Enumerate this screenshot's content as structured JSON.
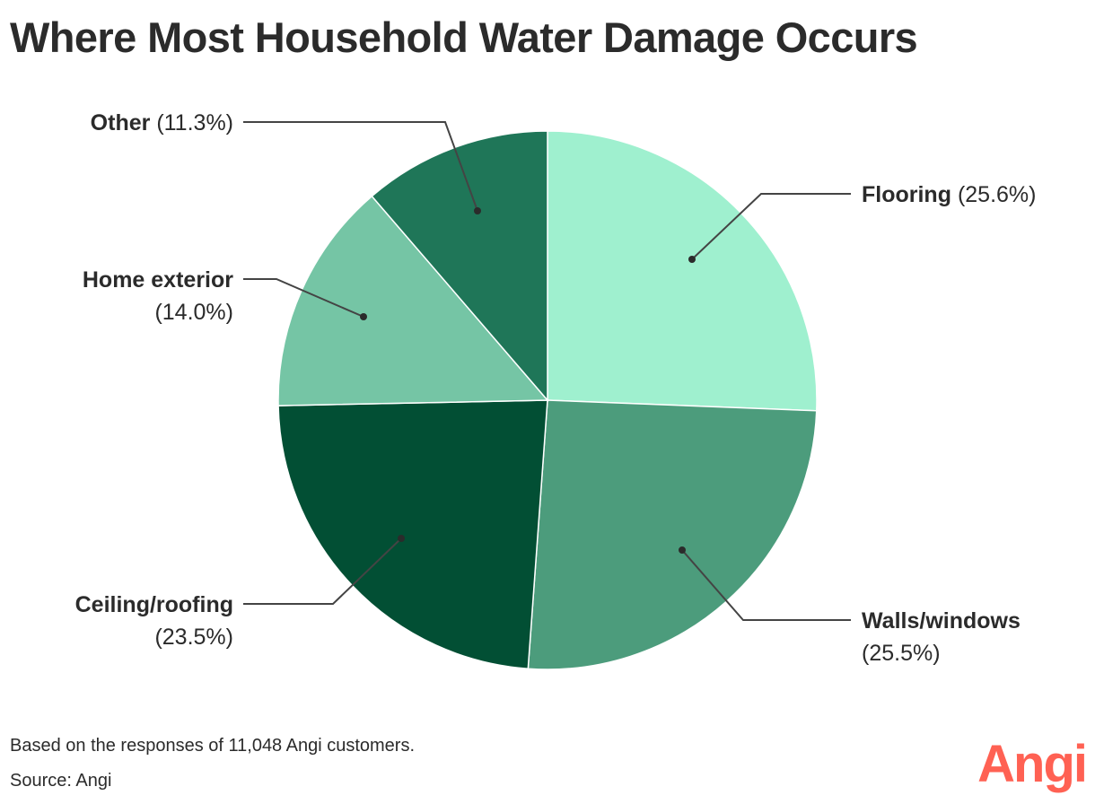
{
  "title": "Where Most Household Water Damage Occurs",
  "chart_data": {
    "type": "pie",
    "title": "Where Most Household Water Damage Occurs",
    "start_angle": "12 o'clock, clockwise",
    "slices": [
      {
        "label": "Flooring",
        "value": 25.6,
        "display": "(25.6%)",
        "color": "#9ff0cf"
      },
      {
        "label": "Walls/windows",
        "value": 25.5,
        "display": "(25.5%)",
        "color": "#4c9c7c"
      },
      {
        "label": "Ceiling/roofing",
        "value": 23.5,
        "display": "(23.5%)",
        "color": "#024f34"
      },
      {
        "label": "Home exterior",
        "value": 14.0,
        "display": "(14.0%)",
        "color": "#75c5a5"
      },
      {
        "label": "Other",
        "value": 11.3,
        "display": "(11.3%)",
        "color": "#1f7658"
      }
    ],
    "unit": "%"
  },
  "labels": {
    "flooring": {
      "name": "Flooring",
      "pct": "(25.6%)"
    },
    "walls": {
      "name": "Walls/windows",
      "pct": "(25.5%)"
    },
    "ceiling": {
      "name": "Ceiling/roofing",
      "pct": "(23.5%)"
    },
    "exterior": {
      "name": "Home exterior",
      "pct": "(14.0%)"
    },
    "other": {
      "name": "Other",
      "pct": "(11.3%)"
    }
  },
  "footer": {
    "note": "Based on the responses of 11,048 Angi customers.",
    "source": "Source: Angi",
    "logo": "Angi",
    "logo_color": "#ff6153"
  }
}
